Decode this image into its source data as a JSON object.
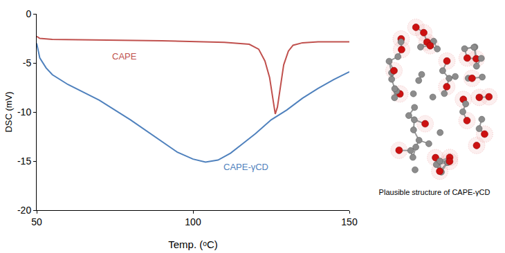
{
  "chart_data": {
    "type": "line",
    "xlabel": "Temp. (ᵒC)",
    "ylabel": "DSC (mV)",
    "xlim": [
      50,
      150
    ],
    "xticks": [
      50,
      100,
      150
    ],
    "ylim": [
      -20,
      0
    ],
    "yticks": [
      -20,
      -15,
      -10,
      -5,
      0
    ],
    "grid": false,
    "series": [
      {
        "name": "CAPE",
        "color": "#c0504d",
        "x": [
          50,
          51,
          55,
          70,
          90,
          110,
          118,
          121,
          123,
          124.5,
          125.5,
          126.3,
          127,
          128,
          129,
          130.5,
          132,
          135,
          140,
          150
        ],
        "values": [
          -2.3,
          -2.5,
          -2.6,
          -2.65,
          -2.75,
          -2.9,
          -3.1,
          -3.6,
          -4.8,
          -6.5,
          -8.5,
          -10.2,
          -9.5,
          -7.2,
          -5.2,
          -3.8,
          -3.2,
          -2.95,
          -2.85,
          -2.85
        ]
      },
      {
        "name": "CAPE-γCD",
        "color": "#4f81bd",
        "x": [
          50,
          51,
          53,
          55,
          60,
          70,
          80,
          90,
          95,
          100,
          104,
          108,
          112,
          116,
          120,
          125,
          130,
          135,
          140,
          145,
          150
        ],
        "values": [
          -3,
          -4.5,
          -5.5,
          -6.2,
          -7.2,
          -8.8,
          -10.8,
          -13,
          -14.1,
          -14.8,
          -15.1,
          -14.9,
          -14.2,
          -13.2,
          -12.2,
          -10.8,
          -9.8,
          -8.6,
          -7.6,
          -6.7,
          -5.9
        ]
      }
    ],
    "annotations": [
      {
        "text": "CAPE",
        "x": 78,
        "y": -4.3,
        "color": "#c0504d"
      },
      {
        "text": "CAPE-γCD",
        "x": 117,
        "y": -15.6,
        "color": "#4f81bd"
      }
    ]
  },
  "image_caption": "Plausible structure of CAPE-γCD"
}
